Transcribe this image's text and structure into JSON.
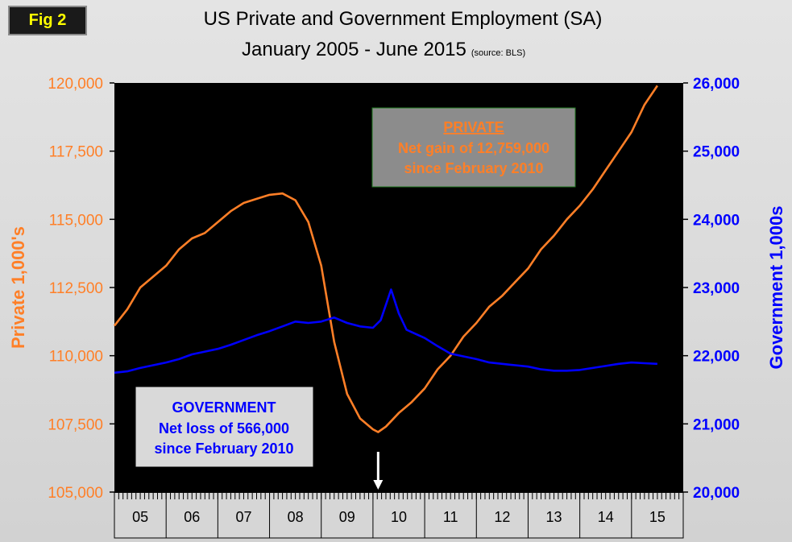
{
  "figure_label": "Fig 2",
  "title": "US Private and Government Employment (SA)",
  "subtitle": "January 2005 - June 2015",
  "source": "(source: BLS)",
  "colors": {
    "private": "#ff7f27",
    "government": "#0000ff",
    "plot_bg": "#000000"
  },
  "chart_data": {
    "type": "line",
    "x_categories": [
      "05",
      "06",
      "07",
      "08",
      "09",
      "10",
      "11",
      "12",
      "13",
      "14",
      "15"
    ],
    "x_range": [
      2005.0,
      2016.0
    ],
    "left_axis": {
      "label": "Private 1,000's",
      "range": [
        105000,
        120000
      ],
      "ticks": [
        "105,000",
        "107,500",
        "110,000",
        "112,500",
        "115,000",
        "117,500",
        "120,000"
      ]
    },
    "right_axis": {
      "label": "Government 1,000s",
      "range": [
        20000,
        26000
      ],
      "ticks": [
        "20,000",
        "21,000",
        "22,000",
        "23,000",
        "24,000",
        "25,000",
        "26,000"
      ]
    },
    "series": [
      {
        "name": "Private",
        "axis": "left",
        "points": [
          [
            2005.0,
            111100
          ],
          [
            2005.25,
            111700
          ],
          [
            2005.5,
            112500
          ],
          [
            2005.75,
            112900
          ],
          [
            2006.0,
            113300
          ],
          [
            2006.25,
            113900
          ],
          [
            2006.5,
            114300
          ],
          [
            2006.75,
            114500
          ],
          [
            2007.0,
            114900
          ],
          [
            2007.25,
            115300
          ],
          [
            2007.5,
            115600
          ],
          [
            2007.75,
            115750
          ],
          [
            2008.0,
            115900
          ],
          [
            2008.25,
            115950
          ],
          [
            2008.5,
            115700
          ],
          [
            2008.75,
            114900
          ],
          [
            2009.0,
            113300
          ],
          [
            2009.25,
            110500
          ],
          [
            2009.5,
            108600
          ],
          [
            2009.75,
            107700
          ],
          [
            2010.0,
            107300
          ],
          [
            2010.1,
            107200
          ],
          [
            2010.25,
            107400
          ],
          [
            2010.5,
            107900
          ],
          [
            2010.75,
            108300
          ],
          [
            2011.0,
            108800
          ],
          [
            2011.25,
            109500
          ],
          [
            2011.5,
            110000
          ],
          [
            2011.75,
            110700
          ],
          [
            2012.0,
            111200
          ],
          [
            2012.25,
            111800
          ],
          [
            2012.5,
            112200
          ],
          [
            2012.75,
            112700
          ],
          [
            2013.0,
            113200
          ],
          [
            2013.25,
            113900
          ],
          [
            2013.5,
            114400
          ],
          [
            2013.75,
            115000
          ],
          [
            2014.0,
            115500
          ],
          [
            2014.25,
            116100
          ],
          [
            2014.5,
            116800
          ],
          [
            2014.75,
            117500
          ],
          [
            2015.0,
            118200
          ],
          [
            2015.25,
            119200
          ],
          [
            2015.5,
            119900
          ]
        ]
      },
      {
        "name": "Government",
        "axis": "right",
        "points": [
          [
            2005.0,
            21750
          ],
          [
            2005.25,
            21770
          ],
          [
            2005.5,
            21820
          ],
          [
            2005.75,
            21860
          ],
          [
            2006.0,
            21900
          ],
          [
            2006.25,
            21950
          ],
          [
            2006.5,
            22020
          ],
          [
            2006.75,
            22060
          ],
          [
            2007.0,
            22100
          ],
          [
            2007.25,
            22160
          ],
          [
            2007.5,
            22230
          ],
          [
            2007.75,
            22300
          ],
          [
            2008.0,
            22360
          ],
          [
            2008.25,
            22430
          ],
          [
            2008.5,
            22500
          ],
          [
            2008.75,
            22480
          ],
          [
            2009.0,
            22500
          ],
          [
            2009.25,
            22560
          ],
          [
            2009.5,
            22480
          ],
          [
            2009.75,
            22430
          ],
          [
            2010.0,
            22410
          ],
          [
            2010.15,
            22520
          ],
          [
            2010.35,
            22970
          ],
          [
            2010.5,
            22620
          ],
          [
            2010.65,
            22380
          ],
          [
            2011.0,
            22260
          ],
          [
            2011.25,
            22140
          ],
          [
            2011.5,
            22030
          ],
          [
            2011.75,
            21990
          ],
          [
            2012.0,
            21950
          ],
          [
            2012.25,
            21900
          ],
          [
            2012.5,
            21880
          ],
          [
            2012.75,
            21860
          ],
          [
            2013.0,
            21840
          ],
          [
            2013.25,
            21800
          ],
          [
            2013.5,
            21780
          ],
          [
            2013.75,
            21780
          ],
          [
            2014.0,
            21790
          ],
          [
            2014.25,
            21820
          ],
          [
            2014.5,
            21850
          ],
          [
            2014.75,
            21880
          ],
          [
            2015.0,
            21900
          ],
          [
            2015.25,
            21890
          ],
          [
            2015.5,
            21880
          ]
        ]
      }
    ],
    "annotations": {
      "private_box": {
        "heading": "PRIVATE",
        "line1": "Net gain of 12,759,000",
        "line2": "since February 2010"
      },
      "government_box": {
        "heading": "GOVERNMENT",
        "line1": "Net loss of 566,000",
        "line2": "since February 2010"
      },
      "arrow_at": 2010.1
    }
  }
}
